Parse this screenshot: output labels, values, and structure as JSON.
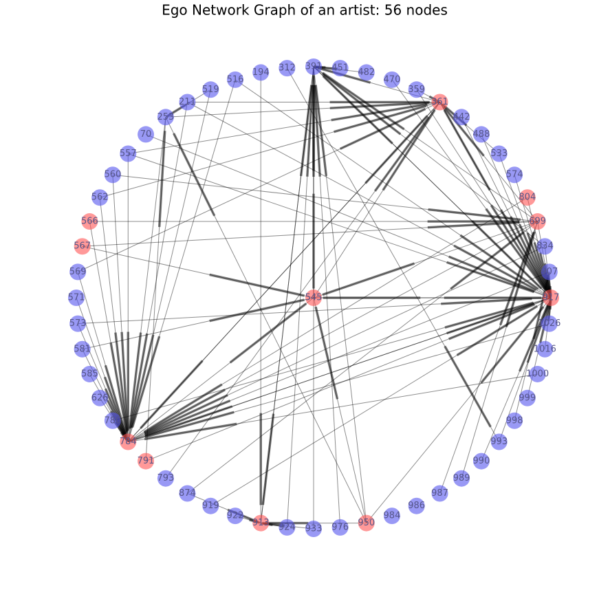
{
  "title": "Ego Network Graph of an artist: 56 nodes",
  "ego": {
    "label": "545",
    "color": "#ff5555"
  },
  "nodes": [
    {
      "label": "391",
      "color": "#5555ee"
    },
    {
      "label": "451",
      "color": "#5555ee"
    },
    {
      "label": "482",
      "color": "#5555ee"
    },
    {
      "label": "470",
      "color": "#5555ee"
    },
    {
      "label": "359",
      "color": "#5555ee"
    },
    {
      "label": "361",
      "color": "#ff5555"
    },
    {
      "label": "442",
      "color": "#5555ee"
    },
    {
      "label": "488",
      "color": "#5555ee"
    },
    {
      "label": "533",
      "color": "#5555ee"
    },
    {
      "label": "574",
      "color": "#5555ee"
    },
    {
      "label": "804",
      "color": "#ff5555"
    },
    {
      "label": "699",
      "color": "#ff5555"
    },
    {
      "label": "834",
      "color": "#5555ee"
    },
    {
      "label": "907",
      "color": "#5555ee"
    },
    {
      "label": "917",
      "color": "#ff5555"
    },
    {
      "label": "1026",
      "color": "#5555ee"
    },
    {
      "label": "1016",
      "color": "#5555ee"
    },
    {
      "label": "1000",
      "color": "#5555ee"
    },
    {
      "label": "999",
      "color": "#5555ee"
    },
    {
      "label": "998",
      "color": "#5555ee"
    },
    {
      "label": "993",
      "color": "#5555ee"
    },
    {
      "label": "990",
      "color": "#5555ee"
    },
    {
      "label": "989",
      "color": "#5555ee"
    },
    {
      "label": "987",
      "color": "#5555ee"
    },
    {
      "label": "986",
      "color": "#5555ee"
    },
    {
      "label": "984",
      "color": "#5555ee"
    },
    {
      "label": "950",
      "color": "#ff5555"
    },
    {
      "label": "976",
      "color": "#5555ee"
    },
    {
      "label": "933",
      "color": "#5555ee"
    },
    {
      "label": "924",
      "color": "#5555ee"
    },
    {
      "label": "913",
      "color": "#ff5555"
    },
    {
      "label": "922",
      "color": "#5555ee"
    },
    {
      "label": "919",
      "color": "#5555ee"
    },
    {
      "label": "874",
      "color": "#5555ee"
    },
    {
      "label": "793",
      "color": "#5555ee"
    },
    {
      "label": "791",
      "color": "#ff5555"
    },
    {
      "label": "784",
      "color": "#ff5555"
    },
    {
      "label": "780",
      "color": "#5555ee"
    },
    {
      "label": "626",
      "color": "#5555ee"
    },
    {
      "label": "585",
      "color": "#5555ee"
    },
    {
      "label": "581",
      "color": "#5555ee"
    },
    {
      "label": "573",
      "color": "#5555ee"
    },
    {
      "label": "571",
      "color": "#5555ee"
    },
    {
      "label": "569",
      "color": "#5555ee"
    },
    {
      "label": "567",
      "color": "#ff5555"
    },
    {
      "label": "566",
      "color": "#ff5555"
    },
    {
      "label": "562",
      "color": "#5555ee"
    },
    {
      "label": "560",
      "color": "#5555ee"
    },
    {
      "label": "557",
      "color": "#5555ee"
    },
    {
      "label": "70",
      "color": "#5555ee"
    },
    {
      "label": "253",
      "color": "#5555ee"
    },
    {
      "label": "211",
      "color": "#5555ee"
    },
    {
      "label": "519",
      "color": "#5555ee"
    },
    {
      "label": "516",
      "color": "#5555ee"
    },
    {
      "label": "194",
      "color": "#5555ee"
    },
    {
      "label": "312",
      "color": "#5555ee"
    }
  ],
  "edges": [
    [
      "361",
      "917"
    ],
    [
      "442",
      "917"
    ],
    [
      "488",
      "917"
    ],
    [
      "533",
      "917"
    ],
    [
      "574",
      "917"
    ],
    [
      "804",
      "917"
    ],
    [
      "699",
      "917"
    ],
    [
      "834",
      "917"
    ],
    [
      "907",
      "917"
    ],
    [
      "470",
      "917"
    ],
    [
      "359",
      "917"
    ],
    [
      "391",
      "917"
    ],
    [
      "1016",
      "917"
    ],
    [
      "1026",
      "917"
    ],
    [
      "573",
      "917"
    ],
    [
      "780",
      "917"
    ],
    [
      "545",
      "917"
    ],
    [
      "784",
      "917"
    ],
    [
      "950",
      "917"
    ],
    [
      "993",
      "917"
    ],
    [
      "557",
      "917"
    ],
    [
      "70",
      "917"
    ],
    [
      "545",
      "391"
    ],
    [
      "950",
      "391"
    ],
    [
      "913",
      "391"
    ],
    [
      "924",
      "391"
    ],
    [
      "699",
      "391"
    ],
    [
      "834",
      "391"
    ],
    [
      "917",
      "391"
    ],
    [
      "361",
      "391"
    ],
    [
      "976",
      "391"
    ],
    [
      "933",
      "391"
    ],
    [
      "359",
      "361"
    ],
    [
      "533",
      "361"
    ],
    [
      "784",
      "361"
    ],
    [
      "569",
      "361"
    ],
    [
      "557",
      "361"
    ],
    [
      "211",
      "361"
    ],
    [
      "253",
      "361"
    ],
    [
      "917",
      "361"
    ],
    [
      "699",
      "361"
    ],
    [
      "562",
      "361"
    ],
    [
      "545",
      "361"
    ],
    [
      "780",
      "784"
    ],
    [
      "626",
      "784"
    ],
    [
      "585",
      "784"
    ],
    [
      "581",
      "784"
    ],
    [
      "573",
      "784"
    ],
    [
      "571",
      "784"
    ],
    [
      "569",
      "784"
    ],
    [
      "566",
      "784"
    ],
    [
      "253",
      "784"
    ],
    [
      "211",
      "784"
    ],
    [
      "917",
      "784"
    ],
    [
      "834",
      "784"
    ],
    [
      "699",
      "784"
    ],
    [
      "1000",
      "784"
    ],
    [
      "361",
      "784"
    ],
    [
      "907",
      "784"
    ],
    [
      "804",
      "784"
    ],
    [
      "1026",
      "784"
    ],
    [
      "391",
      "545"
    ],
    [
      "699",
      "545"
    ],
    [
      "917",
      "545"
    ],
    [
      "784",
      "545"
    ],
    [
      "581",
      "545"
    ],
    [
      "950",
      "545"
    ],
    [
      "567",
      "545"
    ],
    [
      "924",
      "913"
    ],
    [
      "950",
      "913"
    ],
    [
      "874",
      "913"
    ],
    [
      "922",
      "913"
    ],
    [
      "391",
      "913"
    ],
    [
      "933",
      "913"
    ],
    [
      "519",
      "784"
    ],
    [
      "516",
      "784"
    ],
    [
      "560",
      "784"
    ],
    [
      "562",
      "784"
    ],
    [
      "557",
      "784"
    ],
    [
      "950",
      "253"
    ],
    [
      "519",
      "253"
    ],
    [
      "791",
      "253"
    ],
    [
      "793",
      "361"
    ],
    [
      "874",
      "699"
    ],
    [
      "919",
      "917"
    ],
    [
      "987",
      "699"
    ],
    [
      "998",
      "907"
    ],
    [
      "999",
      "917"
    ],
    [
      "990",
      "917"
    ],
    [
      "989",
      "699"
    ],
    [
      "791",
      "917"
    ],
    [
      "567",
      "699"
    ],
    [
      "194",
      "913"
    ],
    [
      "312",
      "993"
    ],
    [
      "451",
      "391"
    ],
    [
      "482",
      "391"
    ],
    [
      "211",
      "917"
    ],
    [
      "566",
      "699"
    ],
    [
      "516",
      "917"
    ],
    [
      "560",
      "699"
    ]
  ]
}
